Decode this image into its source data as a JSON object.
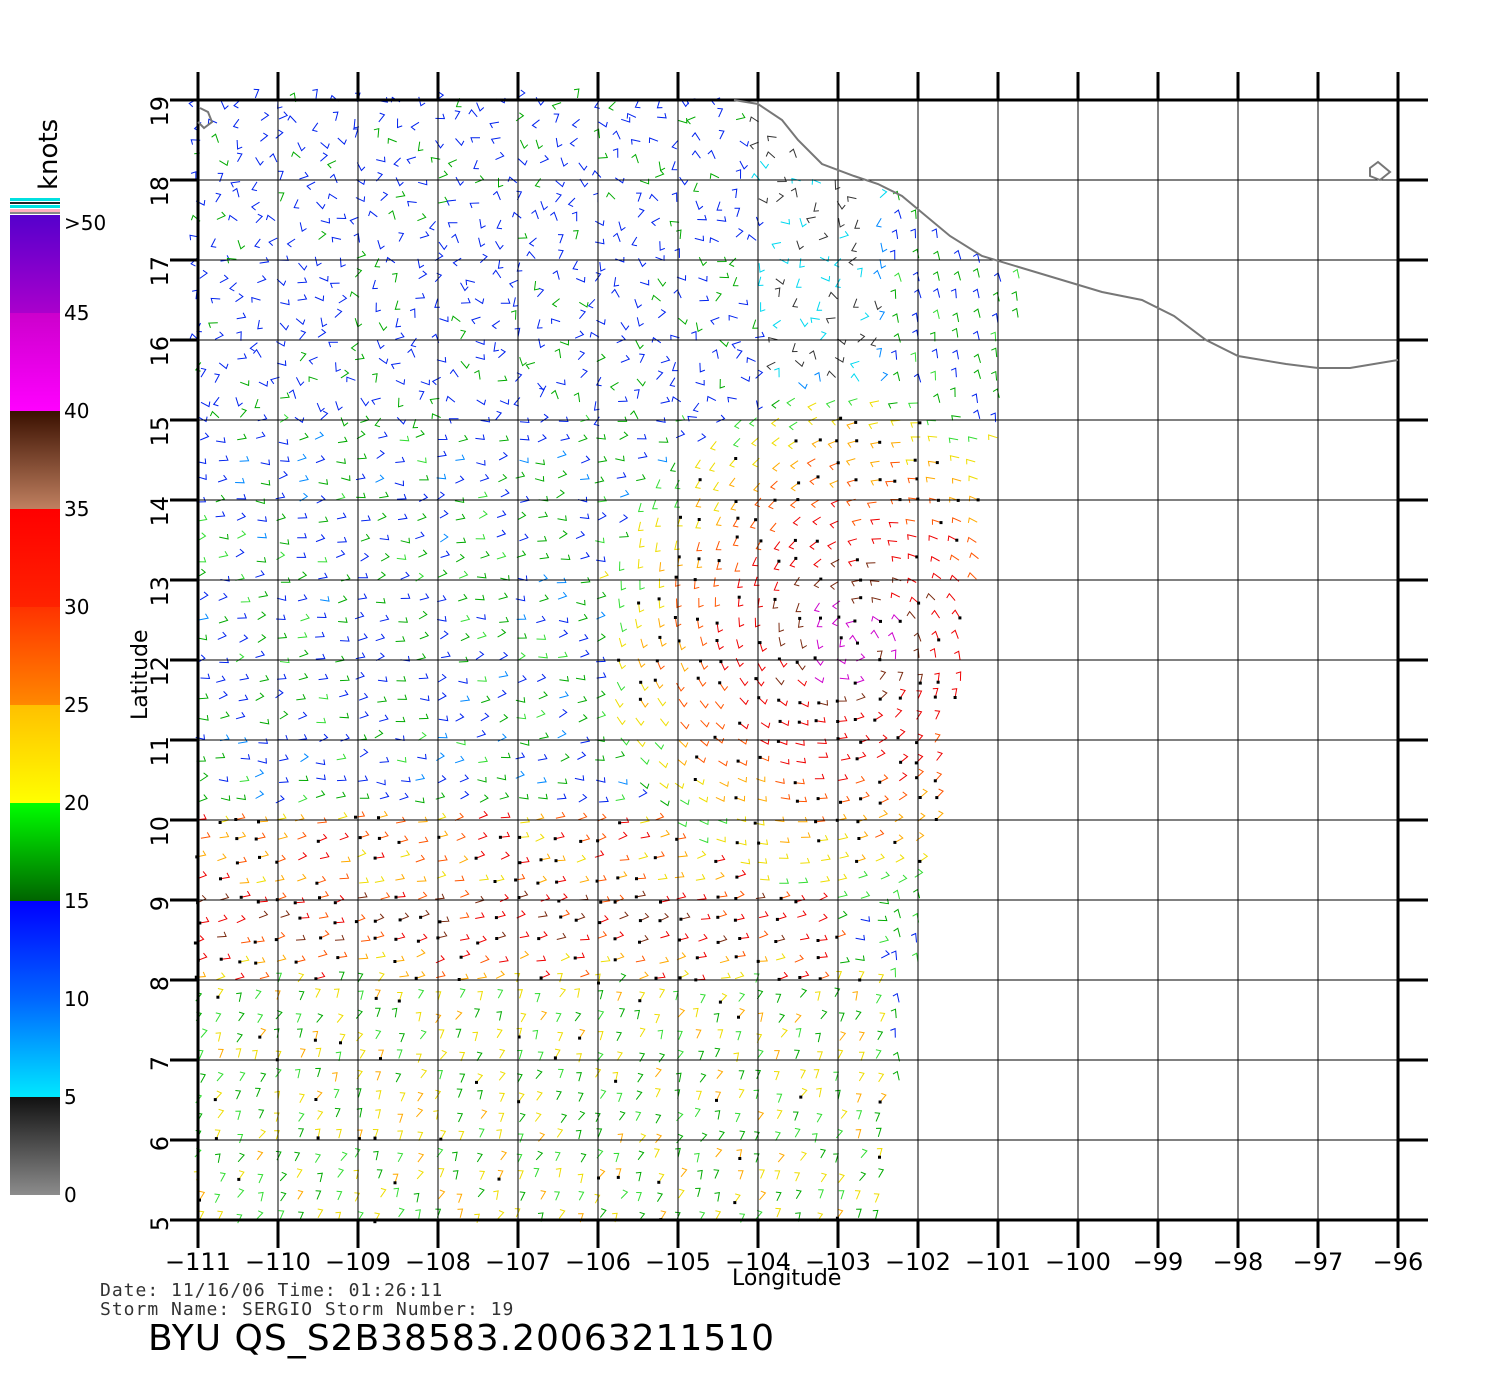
{
  "footer": {
    "date_line": "Date: 11/16/06   Time: 01:26:11",
    "storm_line": "Storm Name: SERGIO   Storm Number: 19",
    "file_title": "BYU QS_S2B38583.20063211510"
  },
  "chart_data": {
    "type": "wind-barb map",
    "xlabel": "Longitude",
    "ylabel": "Latitude",
    "xlim": [
      -111,
      -96
    ],
    "ylim": [
      5,
      19
    ],
    "x_ticks": [
      "-111",
      "-110",
      "-109",
      "-108",
      "-107",
      "-106",
      "-105",
      "-104",
      "-103",
      "-102",
      "-101",
      "-100",
      "-99",
      "-98",
      "-97",
      "-96"
    ],
    "y_ticks": [
      "5",
      "6",
      "7",
      "8",
      "9",
      "10",
      "11",
      "12",
      "13",
      "14",
      "15",
      "16",
      "17",
      "18",
      "19"
    ],
    "grid": true,
    "colorbar": {
      "units": "knots",
      "tick_labels": [
        "0",
        "5",
        "10",
        "15",
        "20",
        "25",
        "30",
        "35",
        "40",
        "45",
        ">50"
      ],
      "bands": [
        {
          "from": 0,
          "to": 5,
          "colors": [
            "#8c8c8c",
            "#111111"
          ]
        },
        {
          "from": 5,
          "to": 10,
          "colors": [
            "#00e8ff",
            "#0066ff"
          ]
        },
        {
          "from": 10,
          "to": 15,
          "colors": [
            "#0066ff",
            "#0000ff"
          ]
        },
        {
          "from": 15,
          "to": 20,
          "colors": [
            "#006400",
            "#00ff00"
          ]
        },
        {
          "from": 20,
          "to": 25,
          "colors": [
            "#ffff00",
            "#ffc000"
          ]
        },
        {
          "from": 25,
          "to": 30,
          "colors": [
            "#ff8800",
            "#ff3300"
          ]
        },
        {
          "from": 30,
          "to": 35,
          "colors": [
            "#ff2200",
            "#ff0000"
          ]
        },
        {
          "from": 35,
          "to": 40,
          "colors": [
            "#c08060",
            "#3a1000"
          ]
        },
        {
          "from": 40,
          "to": 45,
          "colors": [
            "#ff00ff",
            "#cc00cc"
          ]
        },
        {
          "from": 45,
          "to": 50,
          "colors": [
            "#aa00cc",
            "#5500cc"
          ]
        }
      ]
    },
    "storm": {
      "name": "SERGIO",
      "center_lon": -102.8,
      "center_lat": 12.2
    },
    "coastline": [
      [
        -104.3,
        19.0
      ],
      [
        -104.0,
        18.95
      ],
      [
        -103.7,
        18.75
      ],
      [
        -103.5,
        18.5
      ],
      [
        -103.2,
        18.2
      ],
      [
        -102.8,
        18.05
      ],
      [
        -102.5,
        17.95
      ],
      [
        -102.2,
        17.8
      ],
      [
        -101.9,
        17.55
      ],
      [
        -101.6,
        17.3
      ],
      [
        -101.2,
        17.05
      ],
      [
        -100.7,
        16.9
      ],
      [
        -100.2,
        16.75
      ],
      [
        -99.7,
        16.6
      ],
      [
        -99.2,
        16.5
      ],
      [
        -98.8,
        16.3
      ],
      [
        -98.4,
        16.0
      ],
      [
        -98.0,
        15.8
      ],
      [
        -97.7,
        15.75
      ],
      [
        -97.4,
        15.7
      ],
      [
        -97.0,
        15.65
      ],
      [
        -96.6,
        15.65
      ],
      [
        -96.3,
        15.7
      ],
      [
        -96.0,
        15.75
      ]
    ],
    "swath": {
      "lon_west": -111,
      "lon_east_at_top": -100.3,
      "lon_east_at_bottom": -102.5,
      "lat_top": 19,
      "lat_bottom": 5
    }
  }
}
